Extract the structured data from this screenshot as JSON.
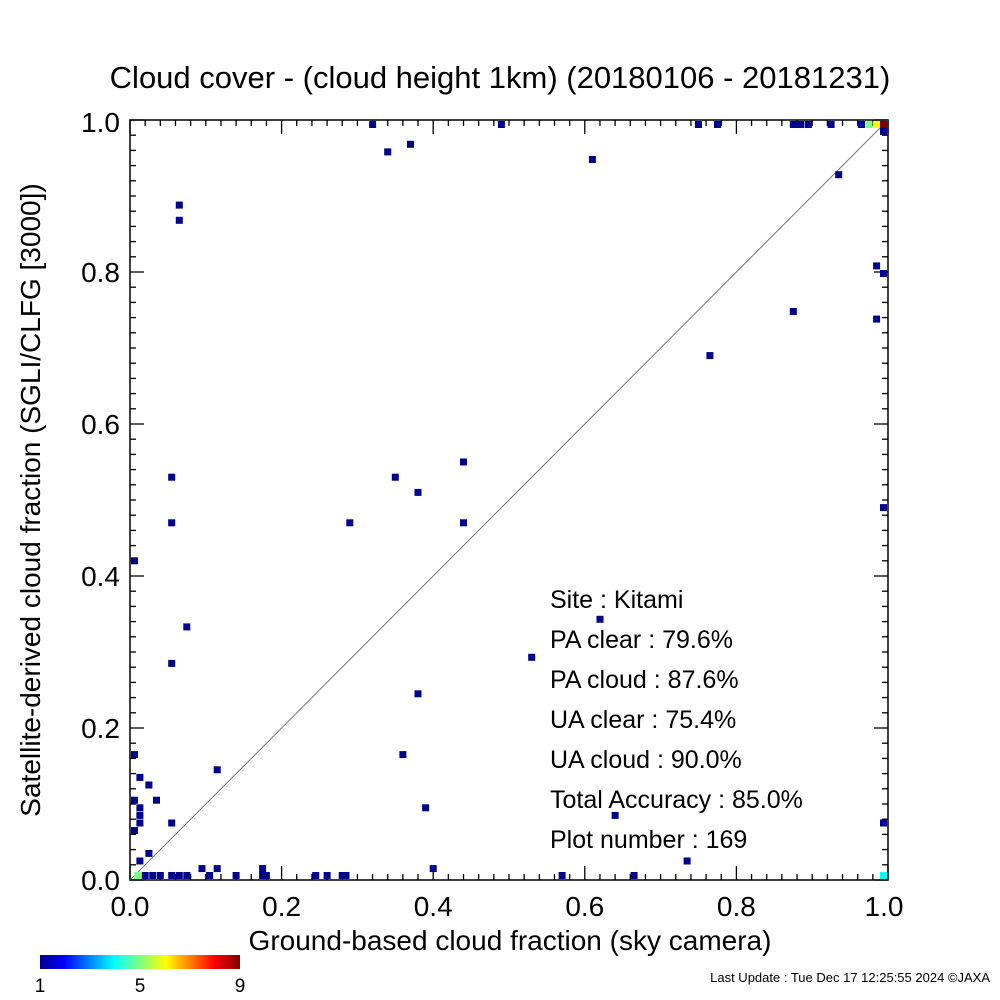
{
  "chart_data": {
    "type": "heatmap",
    "title": "Cloud cover - (cloud height 1km)  (20180106 - 20181231)",
    "xlabel": "Ground-based cloud fraction (sky camera)",
    "ylabel": "Satellite-derived cloud fraction (SGLI/CLFG [3000])",
    "xlim": [
      0.0,
      1.0
    ],
    "ylim": [
      0.0,
      1.0
    ],
    "x_ticks": [
      "0.0",
      "0.2",
      "0.4",
      "0.6",
      "0.8",
      "1.0"
    ],
    "y_ticks": [
      "0.0",
      "0.2",
      "0.4",
      "0.6",
      "0.8",
      "1.0"
    ],
    "diagonal_line": true,
    "colorbar": {
      "min_label": "1",
      "mid_label": "5",
      "max_label": "9",
      "min": 1,
      "max": 9,
      "colormap": "rainbow"
    },
    "points": [
      [
        0.0,
        0.42,
        1
      ],
      [
        0.0,
        0.165,
        1
      ],
      [
        0.0,
        0.105,
        1
      ],
      [
        0.0,
        0.065,
        1
      ],
      [
        0.013,
        0.135,
        1
      ],
      [
        0.013,
        0.095,
        1
      ],
      [
        0.013,
        0.085,
        1
      ],
      [
        0.013,
        0.075,
        1
      ],
      [
        0.013,
        0.025,
        1
      ],
      [
        0.025,
        0.125,
        1
      ],
      [
        0.025,
        0.035,
        1
      ],
      [
        0.035,
        0.105,
        1
      ],
      [
        0.055,
        0.53,
        1
      ],
      [
        0.055,
        0.47,
        1
      ],
      [
        0.055,
        0.285,
        1
      ],
      [
        0.055,
        0.075,
        1
      ],
      [
        0.065,
        0.888,
        1
      ],
      [
        0.065,
        0.868,
        1
      ],
      [
        0.075,
        0.333,
        1
      ],
      [
        0.115,
        0.145,
        1
      ],
      [
        0.115,
        0.015,
        1
      ],
      [
        0.095,
        0.015,
        1
      ],
      [
        0.175,
        0.015,
        1
      ],
      [
        0.01,
        0.0,
        5
      ],
      [
        0.02,
        0.0,
        1
      ],
      [
        0.03,
        0.0,
        1
      ],
      [
        0.04,
        0.0,
        1
      ],
      [
        0.055,
        0.0,
        1
      ],
      [
        0.065,
        0.0,
        1
      ],
      [
        0.075,
        0.0,
        1
      ],
      [
        0.105,
        0.0,
        1
      ],
      [
        0.14,
        0.0,
        1
      ],
      [
        0.175,
        0.0,
        1
      ],
      [
        0.18,
        0.0,
        1
      ],
      [
        0.245,
        0.0,
        1
      ],
      [
        0.26,
        0.0,
        1
      ],
      [
        0.28,
        0.0,
        1
      ],
      [
        0.285,
        0.0,
        1
      ],
      [
        0.57,
        0.0,
        1
      ],
      [
        0.665,
        0.0,
        1
      ],
      [
        0.29,
        0.47,
        1
      ],
      [
        0.32,
        0.998,
        1
      ],
      [
        0.34,
        0.958,
        1
      ],
      [
        0.35,
        0.53,
        1
      ],
      [
        0.36,
        0.165,
        1
      ],
      [
        0.37,
        0.968,
        1
      ],
      [
        0.38,
        0.51,
        1
      ],
      [
        0.38,
        0.245,
        1
      ],
      [
        0.39,
        0.095,
        1
      ],
      [
        0.4,
        0.015,
        1
      ],
      [
        0.44,
        0.55,
        1
      ],
      [
        0.44,
        0.47,
        1
      ],
      [
        0.49,
        0.998,
        1
      ],
      [
        0.53,
        0.293,
        1
      ],
      [
        0.61,
        0.948,
        1
      ],
      [
        0.62,
        0.343,
        1
      ],
      [
        0.64,
        0.085,
        1
      ],
      [
        0.735,
        0.025,
        1
      ],
      [
        0.75,
        0.998,
        1
      ],
      [
        0.765,
        0.69,
        1
      ],
      [
        0.775,
        0.998,
        1
      ],
      [
        0.875,
        0.998,
        1
      ],
      [
        0.875,
        0.748,
        1
      ],
      [
        0.88,
        0.998,
        1
      ],
      [
        0.885,
        0.998,
        1
      ],
      [
        0.895,
        0.998,
        1
      ],
      [
        0.925,
        0.998,
        1
      ],
      [
        0.935,
        0.928,
        1
      ],
      [
        0.965,
        0.998,
        1
      ],
      [
        0.985,
        0.808,
        1
      ],
      [
        0.985,
        0.738,
        1
      ],
      [
        0.998,
        0.798,
        1
      ],
      [
        0.998,
        0.49,
        1
      ],
      [
        0.998,
        0.075,
        1
      ],
      [
        0.998,
        0.0,
        4
      ],
      [
        0.975,
        0.998,
        5
      ],
      [
        0.985,
        0.998,
        6
      ],
      [
        0.995,
        0.998,
        9
      ],
      [
        0.995,
        0.985,
        1
      ]
    ]
  },
  "stats": {
    "site": "Site : Kitami",
    "pa_clear": "PA clear :  79.6%",
    "pa_cloud": "PA cloud :  87.6%",
    "ua_clear": "UA clear :  75.4%",
    "ua_cloud": "UA cloud :  90.0%",
    "total_accuracy": "Total Accuracy :  85.0%",
    "plot_number": "Plot number :       169"
  },
  "footer": {
    "last_update": "Last Update : Tue Dec 17 12:25:55 2024  ©JAXA"
  }
}
